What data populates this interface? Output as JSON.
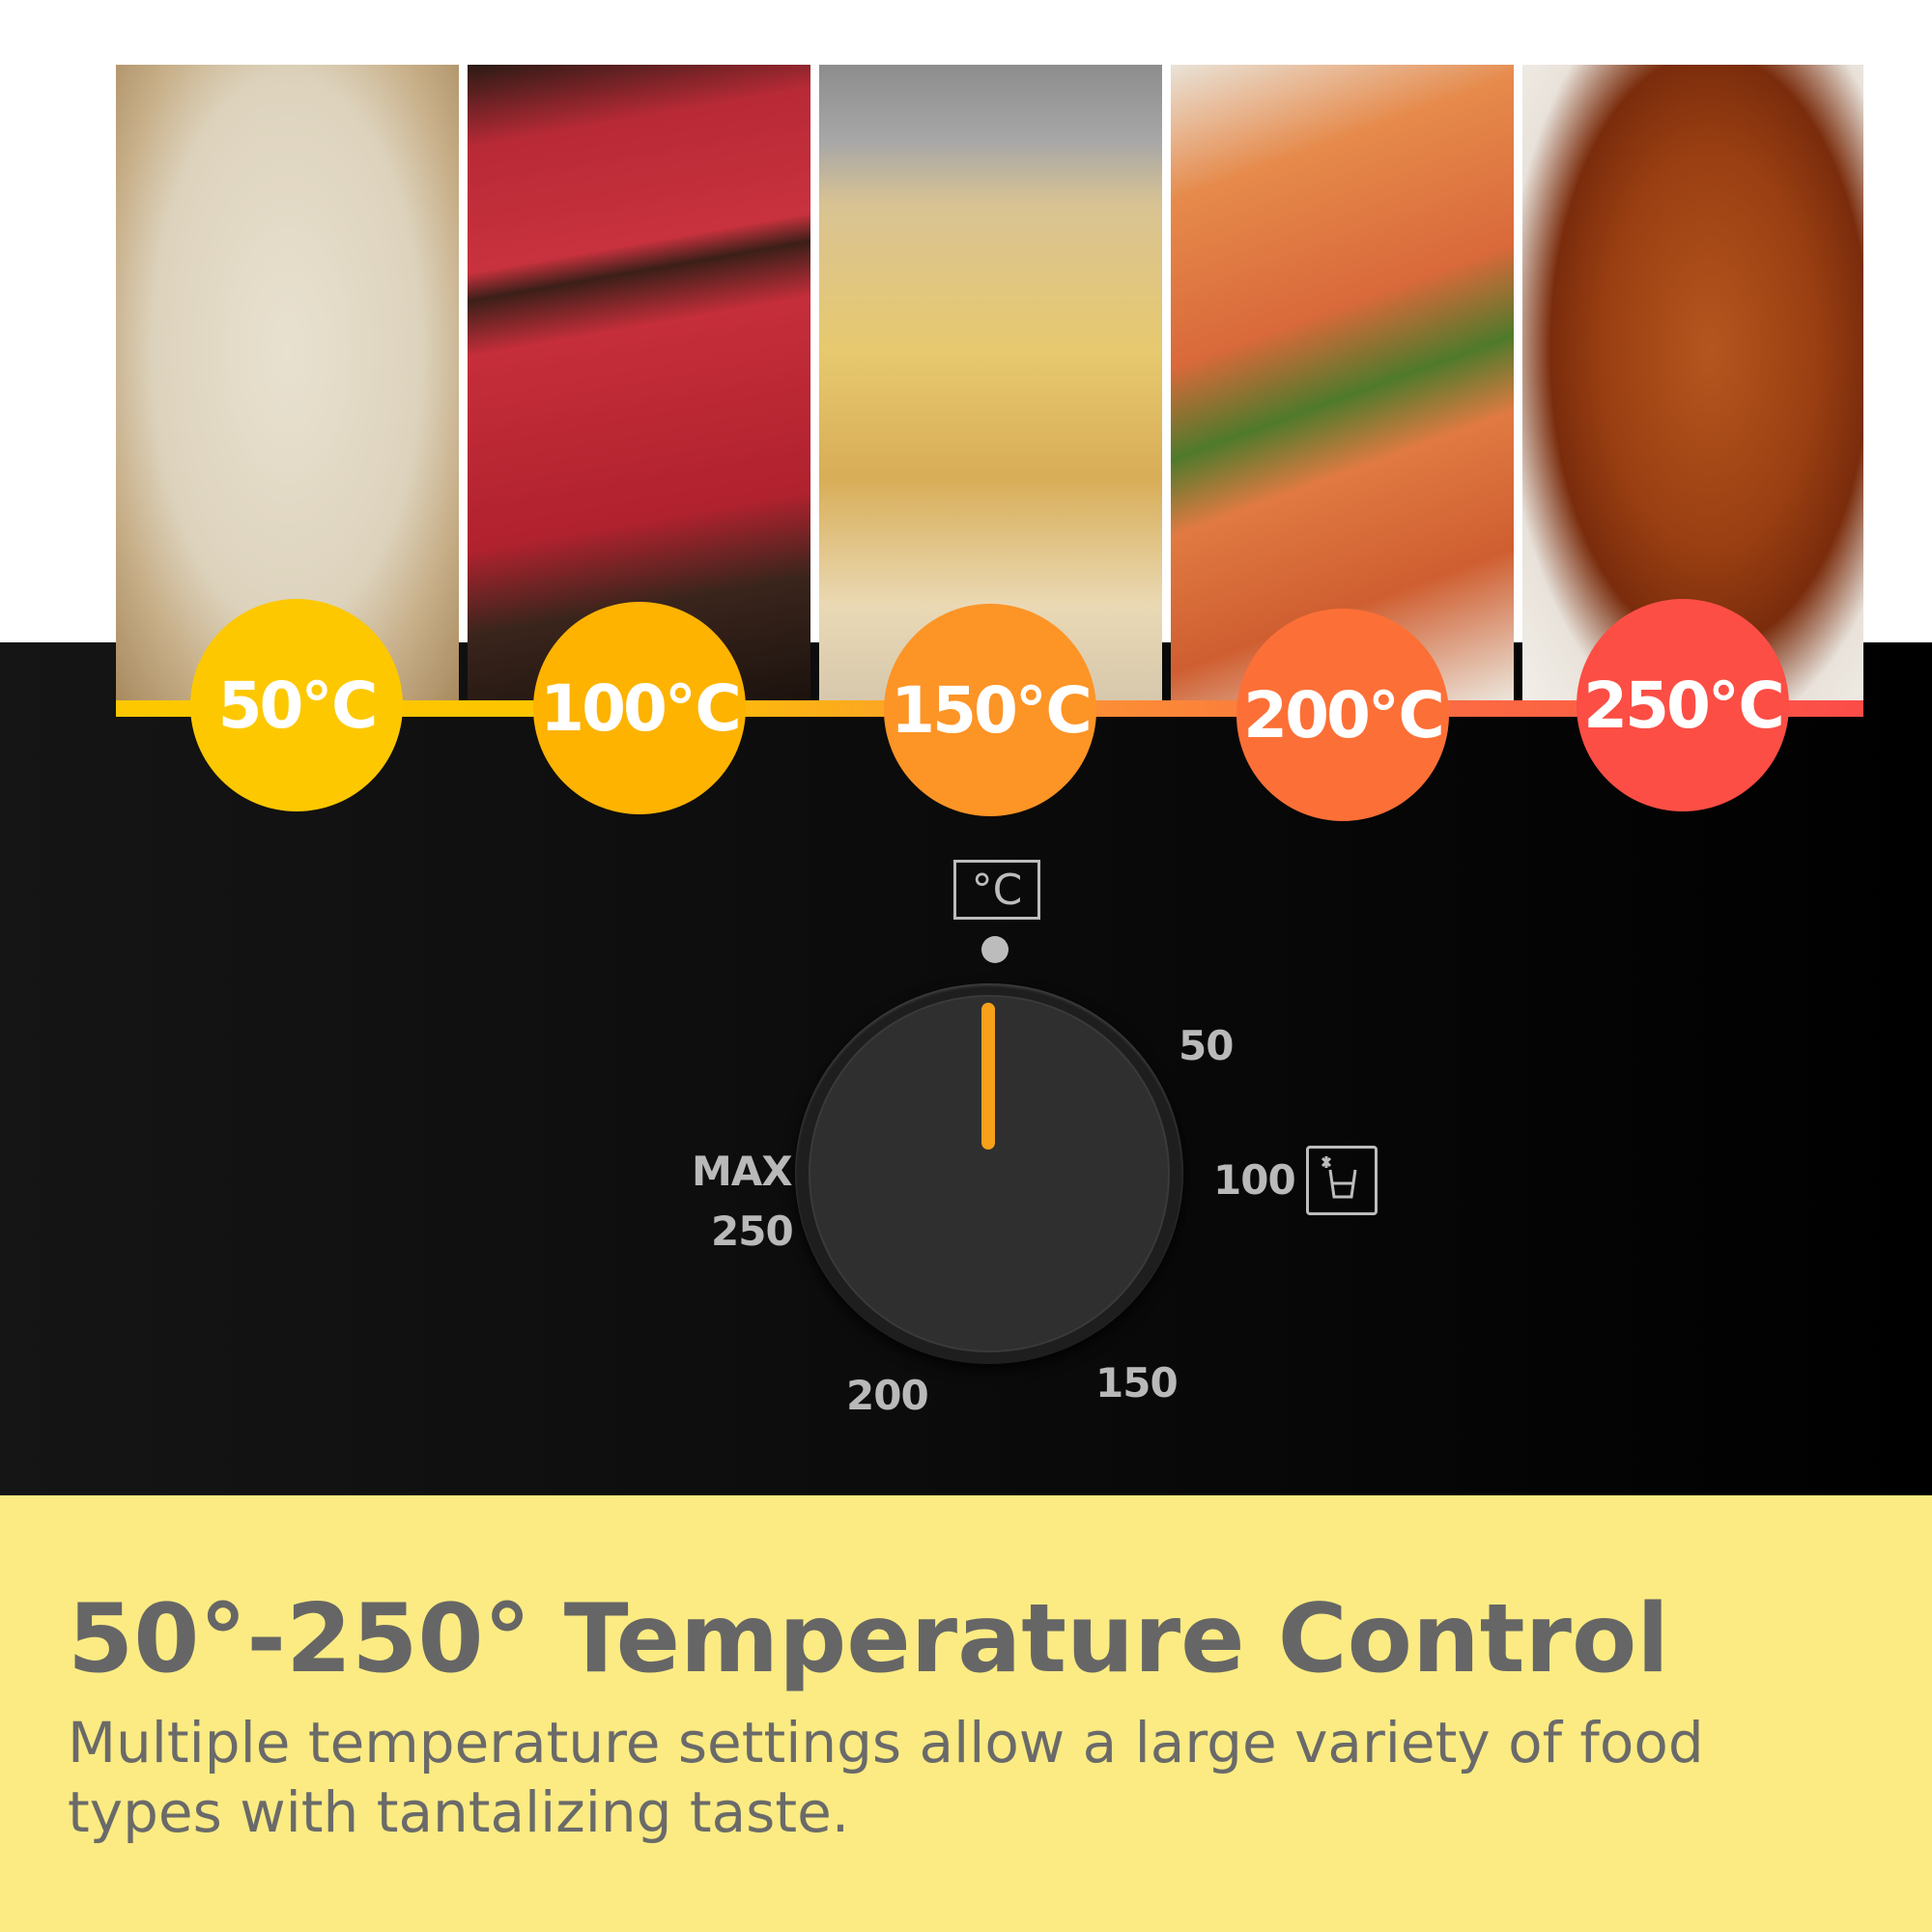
{
  "temperature_steps": [
    {
      "label": "50℃",
      "food": "dough",
      "color": "#fdc800"
    },
    {
      "label": "100℃",
      "food": "raw steak",
      "color": "#fdb300"
    },
    {
      "label": "150℃",
      "food": "garlic bread",
      "color": "#fd9426"
    },
    {
      "label": "200℃",
      "food": "grilled salmon",
      "color": "#fc7037"
    },
    {
      "label": "250℃",
      "food": "roast chicken",
      "color": "#fc4e44"
    }
  ],
  "dial": {
    "unit_label": "°C",
    "marks": {
      "m50": "50",
      "m100": "100",
      "m150": "150",
      "m200": "200",
      "max": "MAX",
      "m250": "250"
    },
    "indicator_color": "#f7a01a",
    "icon": "cup-defrost-icon"
  },
  "footer": {
    "headline": "50°-250° Temperature Control",
    "description": "Multiple temperature settings allow a large variety of food types with tantalizing taste.",
    "background": "#fbeb82"
  }
}
